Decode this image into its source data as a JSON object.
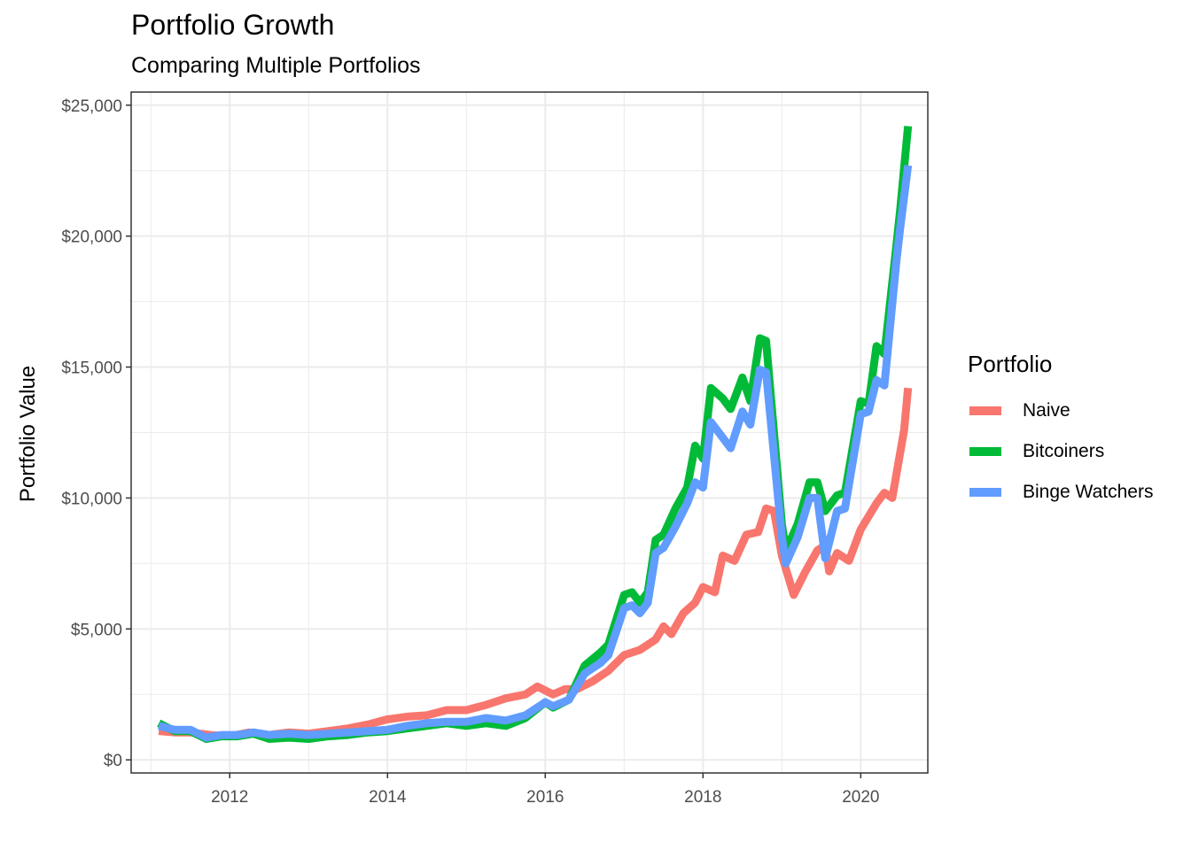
{
  "chart_data": {
    "type": "line",
    "title": "Portfolio Growth",
    "subtitle": "Comparing Multiple Portfolios",
    "xlabel": "",
    "ylabel": "Portfolio Value",
    "xlim": [
      2010.75,
      2020.85
    ],
    "ylim": [
      -500,
      25500
    ],
    "x_ticks": [
      2012,
      2014,
      2016,
      2018,
      2020
    ],
    "x_tick_labels": [
      "2012",
      "2014",
      "2016",
      "2018",
      "2020"
    ],
    "y_ticks": [
      0,
      5000,
      10000,
      15000,
      20000,
      25000
    ],
    "y_tick_labels": [
      "$0",
      "$5,000",
      "$10,000",
      "$15,000",
      "$20,000",
      "$25,000"
    ],
    "grid": true,
    "legend": {
      "title": "Portfolio",
      "position": "right"
    },
    "series": [
      {
        "name": "Naive",
        "color": "#F8766D",
        "x": [
          2011.1,
          2011.3,
          2011.5,
          2011.75,
          2012,
          2012.25,
          2012.5,
          2012.75,
          2013,
          2013.25,
          2013.5,
          2013.75,
          2014,
          2014.25,
          2014.5,
          2014.75,
          2015,
          2015.25,
          2015.5,
          2015.75,
          2015.9,
          2016.1,
          2016.25,
          2016.4,
          2016.6,
          2016.8,
          2017,
          2017.2,
          2017.4,
          2017.5,
          2017.6,
          2017.75,
          2017.9,
          2018,
          2018.15,
          2018.25,
          2018.4,
          2018.55,
          2018.7,
          2018.8,
          2018.9,
          2019,
          2019.15,
          2019.3,
          2019.45,
          2019.55,
          2019.6,
          2019.7,
          2019.85,
          2020,
          2020.2,
          2020.3,
          2020.4,
          2020.55,
          2020.6
        ],
        "values": [
          1100,
          1050,
          1050,
          950,
          900,
          1050,
          950,
          1050,
          1000,
          1100,
          1200,
          1350,
          1550,
          1650,
          1700,
          1900,
          1900,
          2100,
          2350,
          2500,
          2800,
          2500,
          2700,
          2700,
          3000,
          3400,
          4000,
          4200,
          4600,
          5100,
          4800,
          5600,
          6000,
          6600,
          6400,
          7800,
          7600,
          8600,
          8700,
          9600,
          9500,
          7800,
          6300,
          7200,
          8000,
          8200,
          7200,
          7900,
          7600,
          8800,
          9800,
          10200,
          10000,
          12600,
          14200
        ]
      },
      {
        "name": "Bitcoiners",
        "color": "#00BA38",
        "x": [
          2011.1,
          2011.3,
          2011.5,
          2011.7,
          2011.9,
          2012.1,
          2012.3,
          2012.5,
          2012.75,
          2013,
          2013.25,
          2013.5,
          2013.75,
          2014,
          2014.25,
          2014.5,
          2014.75,
          2015,
          2015.25,
          2015.5,
          2015.75,
          2016,
          2016.1,
          2016.3,
          2016.5,
          2016.7,
          2016.8,
          2017,
          2017.1,
          2017.2,
          2017.3,
          2017.4,
          2017.5,
          2017.65,
          2017.8,
          2017.9,
          2018,
          2018.1,
          2018.25,
          2018.35,
          2018.5,
          2018.6,
          2018.72,
          2018.8,
          2019,
          2019.05,
          2019.2,
          2019.35,
          2019.45,
          2019.55,
          2019.7,
          2019.8,
          2020,
          2020.1,
          2020.2,
          2020.3,
          2020.45,
          2020.5,
          2020.6
        ],
        "values": [
          1400,
          1100,
          1100,
          800,
          900,
          900,
          1000,
          800,
          850,
          800,
          900,
          950,
          1050,
          1100,
          1200,
          1300,
          1400,
          1300,
          1400,
          1300,
          1600,
          2200,
          2000,
          2300,
          3600,
          4100,
          4400,
          6300,
          6400,
          6000,
          6400,
          8400,
          8600,
          9600,
          10400,
          12000,
          11500,
          14200,
          13800,
          13400,
          14600,
          13700,
          16100,
          16000,
          9000,
          8000,
          9000,
          10600,
          10600,
          9500,
          10100,
          10200,
          13700,
          13600,
          15800,
          15500,
          19600,
          21000,
          24200
        ]
      },
      {
        "name": "Binge Watchers",
        "color": "#619CFF",
        "x": [
          2011.1,
          2011.3,
          2011.5,
          2011.7,
          2011.9,
          2012.1,
          2012.3,
          2012.5,
          2012.75,
          2013,
          2013.25,
          2013.5,
          2013.75,
          2014,
          2014.25,
          2014.5,
          2014.75,
          2015,
          2015.25,
          2015.5,
          2015.75,
          2016,
          2016.1,
          2016.3,
          2016.5,
          2016.7,
          2016.8,
          2017,
          2017.1,
          2017.2,
          2017.3,
          2017.4,
          2017.5,
          2017.65,
          2017.8,
          2017.9,
          2018,
          2018.1,
          2018.25,
          2018.35,
          2018.5,
          2018.6,
          2018.72,
          2018.8,
          2019,
          2019.05,
          2019.2,
          2019.35,
          2019.45,
          2019.55,
          2019.7,
          2019.8,
          2020,
          2020.1,
          2020.2,
          2020.3,
          2020.45,
          2020.5,
          2020.6
        ],
        "values": [
          1300,
          1150,
          1150,
          850,
          950,
          950,
          1050,
          950,
          1000,
          950,
          1000,
          1050,
          1100,
          1150,
          1300,
          1400,
          1450,
          1450,
          1600,
          1500,
          1700,
          2200,
          2050,
          2300,
          3300,
          3700,
          4000,
          5800,
          5900,
          5600,
          6000,
          7900,
          8100,
          8900,
          9800,
          10600,
          10400,
          12900,
          12300,
          11900,
          13300,
          12800,
          14900,
          14800,
          8500,
          7500,
          8500,
          10000,
          10000,
          7700,
          9500,
          9600,
          13200,
          13300,
          14500,
          14300,
          19000,
          20300,
          22700
        ]
      }
    ]
  }
}
